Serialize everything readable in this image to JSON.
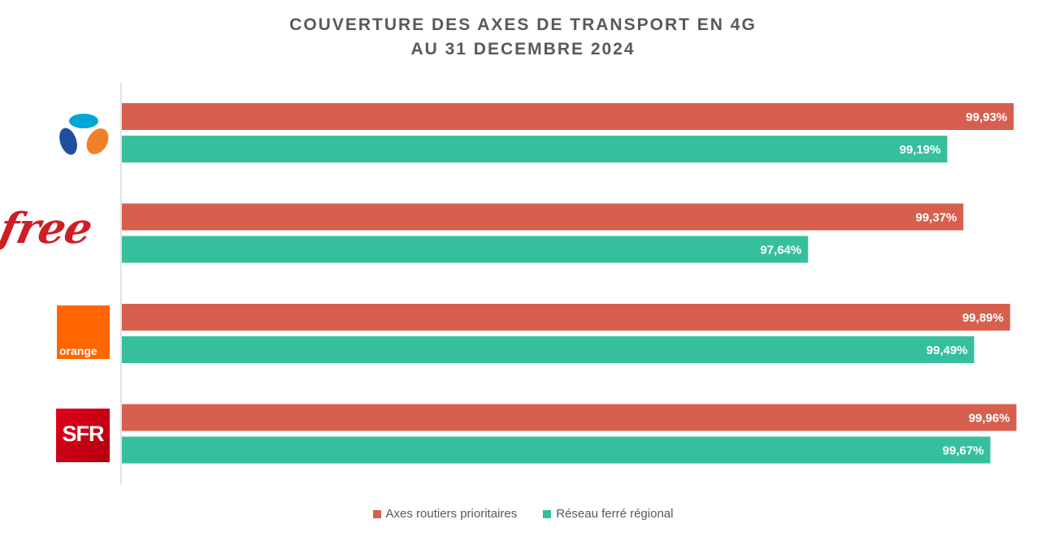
{
  "chart_data": {
    "type": "bar",
    "orientation": "horizontal",
    "title": [
      "COUVERTURE DES AXES DE TRANSPORT EN 4G",
      "AU 31 DECEMBRE 2024"
    ],
    "categories": [
      "Bouygues Telecom",
      "Free",
      "Orange",
      "SFR"
    ],
    "series": [
      {
        "name": "Axes routiers prioritaires",
        "color": "#d65f4e",
        "values": [
          99.93,
          99.37,
          99.89,
          99.96
        ],
        "labels": [
          "99,93%",
          "99,37%",
          "99,89%",
          "99,96%"
        ]
      },
      {
        "name": "Réseau ferré régional",
        "color": "#36bf9d",
        "values": [
          99.19,
          97.64,
          99.49,
          99.67
        ],
        "labels": [
          "99,19%",
          "97,64%",
          "99,49%",
          "99,67%"
        ]
      }
    ],
    "xlim": [
      90,
      100
    ],
    "grid": false,
    "legend_position": "bottom",
    "value_axis_visible": false
  },
  "logos": {
    "free": "free",
    "orange": "orange",
    "sfr": "SFR",
    "bouygues": "bouygues-telecom-logo"
  }
}
